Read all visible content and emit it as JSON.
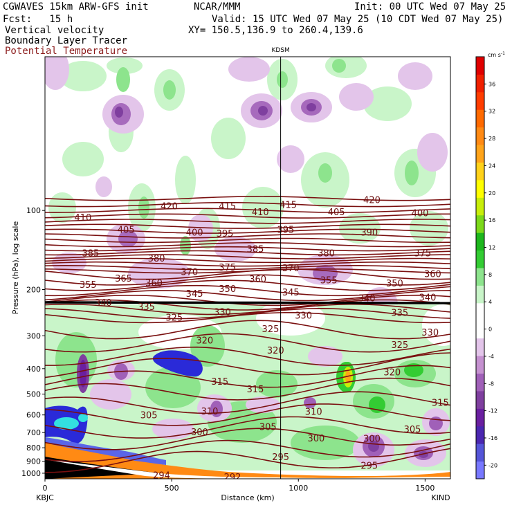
{
  "header": {
    "model": "CGWAVES 15km ARW-GFS init",
    "center": "NCAR/MMM",
    "init": "Init: 00 UTC Wed 07 May 25",
    "fcst": "Fcst:   15 h",
    "valid": "Valid: 15 UTC Wed 07 May 25 (10 CDT Wed 07 May 25)",
    "field1": "Vertical velocity",
    "field2": "Boundary Layer Tracer",
    "field3": "Potential Temperature",
    "xy": "XY= 150.5,136.9 to 260.4,139.6",
    "field3_color": "#8b1a1a"
  },
  "chart_data": {
    "type": "cross-section",
    "ylabel": "Pressure (hPa), log scale",
    "xlabel": "Distance (km)",
    "station_label": "KDSM",
    "start_label": "KBJC",
    "end_label": "KIND",
    "x_ticks": [
      "0",
      "500",
      "1000",
      "1500"
    ],
    "x_tick_values": [
      0,
      500,
      1000,
      1500
    ],
    "xlim": [
      0,
      1600
    ],
    "y_ticks": [
      "100",
      "200",
      "300",
      "400",
      "500",
      "600",
      "700",
      "800",
      "900",
      "1000"
    ],
    "y_tick_values": [
      100,
      200,
      300,
      400,
      500,
      600,
      700,
      800,
      900,
      1000
    ],
    "ylim": [
      1050,
      26
    ],
    "station_x": 930,
    "colorbar": {
      "unit": "cm s",
      "unit_exp": "-1",
      "labels": [
        "36",
        "32",
        "28",
        "24",
        "20",
        "16",
        "12",
        "8",
        "4",
        "0",
        "-4",
        "-8",
        "-12",
        "-16",
        "-20"
      ],
      "label_values": [
        36,
        32,
        28,
        24,
        20,
        16,
        12,
        8,
        4,
        0,
        -4,
        -8,
        -12,
        -16,
        -20
      ],
      "vmin": -22,
      "vmax": 40,
      "colors": [
        "#7878ff",
        "#5555d8",
        "#4b27b0",
        "#6a1fa0",
        "#7f3f9f",
        "#a060b8",
        "#c591d0",
        "#e3c5ea",
        "#ffffff",
        "#ffffff",
        "#c9f5c9",
        "#8de48d",
        "#33cc33",
        "#1db71d",
        "#7cd91a",
        "#c8ee0a",
        "#ffff00",
        "#ffd21a",
        "#ffa41a",
        "#ff8a14",
        "#ff6a00",
        "#ff3d00",
        "#f02000",
        "#e00000"
      ]
    },
    "theta_labels": [
      {
        "t": "420",
        "x": 490,
        "p": 96
      },
      {
        "t": "415",
        "x": 720,
        "p": 96
      },
      {
        "t": "415",
        "x": 960,
        "p": 95
      },
      {
        "t": "420",
        "x": 1290,
        "p": 91
      },
      {
        "t": "410",
        "x": 150,
        "p": 106
      },
      {
        "t": "410",
        "x": 850,
        "p": 101
      },
      {
        "t": "405",
        "x": 1150,
        "p": 101
      },
      {
        "t": "400",
        "x": 1480,
        "p": 102
      },
      {
        "t": "405",
        "x": 320,
        "p": 118
      },
      {
        "t": "400",
        "x": 590,
        "p": 121
      },
      {
        "t": "395",
        "x": 710,
        "p": 122
      },
      {
        "t": "395",
        "x": 950,
        "p": 118
      },
      {
        "t": "390",
        "x": 1280,
        "p": 121
      },
      {
        "t": "385",
        "x": 180,
        "p": 145
      },
      {
        "t": "385",
        "x": 830,
        "p": 140
      },
      {
        "t": "380",
        "x": 1110,
        "p": 145
      },
      {
        "t": "375",
        "x": 1490,
        "p": 145
      },
      {
        "t": "380",
        "x": 440,
        "p": 152
      },
      {
        "t": "370",
        "x": 570,
        "p": 171
      },
      {
        "t": "375",
        "x": 720,
        "p": 164
      },
      {
        "t": "370",
        "x": 970,
        "p": 165
      },
      {
        "t": "360",
        "x": 1530,
        "p": 174
      },
      {
        "t": "365",
        "x": 310,
        "p": 181
      },
      {
        "t": "360",
        "x": 430,
        "p": 188
      },
      {
        "t": "360",
        "x": 840,
        "p": 182
      },
      {
        "t": "355",
        "x": 1120,
        "p": 184
      },
      {
        "t": "350",
        "x": 1380,
        "p": 189
      },
      {
        "t": "355",
        "x": 170,
        "p": 191
      },
      {
        "t": "345",
        "x": 590,
        "p": 207
      },
      {
        "t": "350",
        "x": 720,
        "p": 198
      },
      {
        "t": "345",
        "x": 970,
        "p": 204
      },
      {
        "t": "340",
        "x": 1270,
        "p": 215
      },
      {
        "t": "340",
        "x": 1510,
        "p": 214
      },
      {
        "t": "340",
        "x": 230,
        "p": 224
      },
      {
        "t": "335",
        "x": 400,
        "p": 232
      },
      {
        "t": "330",
        "x": 700,
        "p": 243
      },
      {
        "t": "330",
        "x": 1020,
        "p": 250
      },
      {
        "t": "335",
        "x": 1400,
        "p": 244
      },
      {
        "t": "325",
        "x": 510,
        "p": 255
      },
      {
        "t": "325",
        "x": 890,
        "p": 282
      },
      {
        "t": "330",
        "x": 1520,
        "p": 290
      },
      {
        "t": "320",
        "x": 630,
        "p": 311
      },
      {
        "t": "320",
        "x": 910,
        "p": 340
      },
      {
        "t": "325",
        "x": 1400,
        "p": 324
      },
      {
        "t": "320",
        "x": 1370,
        "p": 412
      },
      {
        "t": "315",
        "x": 690,
        "p": 446
      },
      {
        "t": "315",
        "x": 830,
        "p": 478
      },
      {
        "t": "315",
        "x": 1560,
        "p": 537
      },
      {
        "t": "305",
        "x": 410,
        "p": 600
      },
      {
        "t": "310",
        "x": 650,
        "p": 579
      },
      {
        "t": "310",
        "x": 1060,
        "p": 582
      },
      {
        "t": "300",
        "x": 610,
        "p": 696
      },
      {
        "t": "305",
        "x": 880,
        "p": 664
      },
      {
        "t": "300",
        "x": 1070,
        "p": 735
      },
      {
        "t": "300",
        "x": 1290,
        "p": 736
      },
      {
        "t": "305",
        "x": 1450,
        "p": 679
      },
      {
        "t": "295",
        "x": 930,
        "p": 866
      },
      {
        "t": "295",
        "x": 1280,
        "p": 932
      },
      {
        "t": "294",
        "x": 460,
        "p": 1016
      },
      {
        "t": "292",
        "x": 740,
        "p": 1030
      }
    ]
  }
}
